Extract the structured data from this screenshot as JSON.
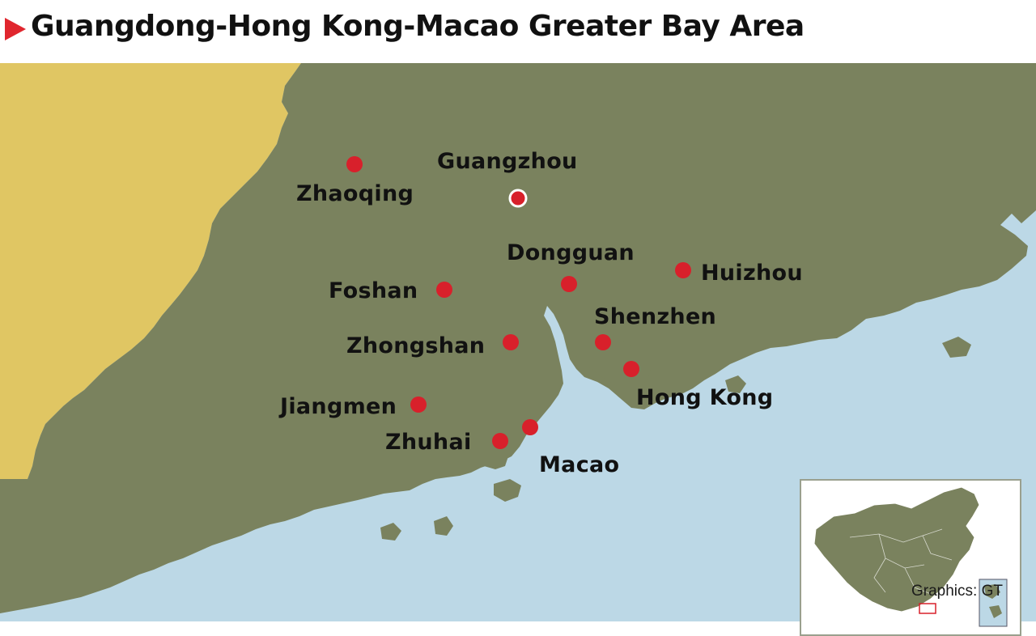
{
  "header": {
    "title": "Guangdong-Hong Kong-Macao Greater Bay Area"
  },
  "colors": {
    "land": "#7a825e",
    "neighbor_land": "#e0c663",
    "sea": "#bcd8e6",
    "city_dot": "#d8202b",
    "title_marker": "#e0262e"
  },
  "cities": [
    {
      "id": "zhaoqing",
      "name": "Zhaoqing",
      "capital": false
    },
    {
      "id": "guangzhou",
      "name": "Guangzhou",
      "capital": true
    },
    {
      "id": "dongguan",
      "name": "Dongguan",
      "capital": false
    },
    {
      "id": "huizhou",
      "name": "Huizhou",
      "capital": false
    },
    {
      "id": "foshan",
      "name": "Foshan",
      "capital": false
    },
    {
      "id": "shenzhen",
      "name": "Shenzhen",
      "capital": false
    },
    {
      "id": "zhongshan",
      "name": "Zhongshan",
      "capital": false
    },
    {
      "id": "hongkong",
      "name": "Hong Kong",
      "capital": false
    },
    {
      "id": "jiangmen",
      "name": "Jiangmen",
      "capital": false
    },
    {
      "id": "zhuhai",
      "name": "Zhuhai",
      "capital": false
    },
    {
      "id": "macao",
      "name": "Macao",
      "capital": false
    }
  ],
  "credit": "Graphics: GT"
}
